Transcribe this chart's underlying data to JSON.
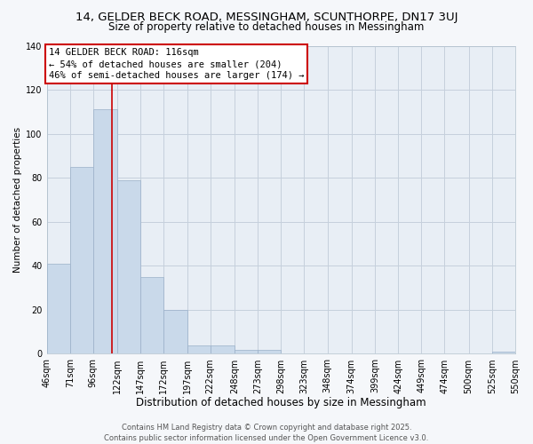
{
  "title": "14, GELDER BECK ROAD, MESSINGHAM, SCUNTHORPE, DN17 3UJ",
  "subtitle": "Size of property relative to detached houses in Messingham",
  "bar_values": [
    41,
    85,
    111,
    79,
    35,
    20,
    4,
    4,
    2,
    2,
    0,
    0,
    0,
    0,
    0,
    0,
    0,
    0,
    0,
    1
  ],
  "bin_edges": [
    46,
    71,
    96,
    122,
    147,
    172,
    197,
    222,
    248,
    273,
    298,
    323,
    348,
    374,
    399,
    424,
    449,
    474,
    500,
    525,
    550
  ],
  "x_tick_labels": [
    "46sqm",
    "71sqm",
    "96sqm",
    "122sqm",
    "147sqm",
    "172sqm",
    "197sqm",
    "222sqm",
    "248sqm",
    "273sqm",
    "298sqm",
    "323sqm",
    "348sqm",
    "374sqm",
    "399sqm",
    "424sqm",
    "449sqm",
    "474sqm",
    "500sqm",
    "525sqm",
    "550sqm"
  ],
  "xlabel": "Distribution of detached houses by size in Messingham",
  "ylabel": "Number of detached properties",
  "bar_color": "#c9d9ea",
  "bar_edge_color": "#9ab0c8",
  "plot_bg_color": "#e8eef5",
  "figure_bg_color": "#f5f7fa",
  "grid_color": "#c5d0dc",
  "vline_x": 116,
  "vline_color": "#cc0000",
  "annotation_title": "14 GELDER BECK ROAD: 116sqm",
  "annotation_line1": "← 54% of detached houses are smaller (204)",
  "annotation_line2": "46% of semi-detached houses are larger (174) →",
  "annotation_box_color": "#ffffff",
  "annotation_box_edge": "#cc0000",
  "ylim": [
    0,
    140
  ],
  "yticks": [
    0,
    20,
    40,
    60,
    80,
    100,
    120,
    140
  ],
  "footer1": "Contains HM Land Registry data © Crown copyright and database right 2025.",
  "footer2": "Contains public sector information licensed under the Open Government Licence v3.0.",
  "title_fontsize": 9.5,
  "subtitle_fontsize": 8.5,
  "xlabel_fontsize": 8.5,
  "ylabel_fontsize": 7.5,
  "tick_fontsize": 7,
  "annotation_fontsize": 7.5,
  "footer_fontsize": 6
}
